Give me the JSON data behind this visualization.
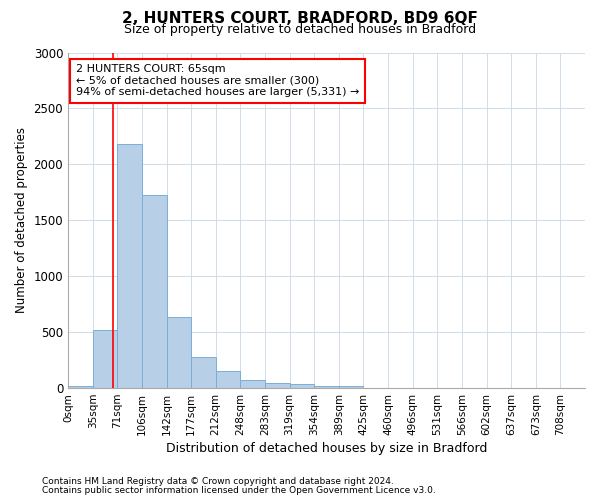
{
  "title": "2, HUNTERS COURT, BRADFORD, BD9 6QF",
  "subtitle": "Size of property relative to detached houses in Bradford",
  "xlabel": "Distribution of detached houses by size in Bradford",
  "ylabel": "Number of detached properties",
  "footnote1": "Contains HM Land Registry data © Crown copyright and database right 2024.",
  "footnote2": "Contains public sector information licensed under the Open Government Licence v3.0.",
  "bar_labels": [
    "0sqm",
    "35sqm",
    "71sqm",
    "106sqm",
    "142sqm",
    "177sqm",
    "212sqm",
    "248sqm",
    "283sqm",
    "319sqm",
    "354sqm",
    "389sqm",
    "425sqm",
    "460sqm",
    "496sqm",
    "531sqm",
    "566sqm",
    "602sqm",
    "637sqm",
    "673sqm",
    "708sqm"
  ],
  "bar_values": [
    20,
    520,
    2180,
    1730,
    635,
    280,
    155,
    70,
    45,
    35,
    20,
    15,
    5,
    5,
    5,
    2,
    2,
    1,
    1,
    1,
    0
  ],
  "bar_color": "#b8cfe8",
  "bar_edge_color": "#7aafd4",
  "ylim": [
    0,
    3000
  ],
  "yticks": [
    0,
    500,
    1000,
    1500,
    2000,
    2500,
    3000
  ],
  "property_sqm": 65,
  "bin_edges": [
    0,
    35,
    71,
    106,
    142,
    177,
    212,
    248,
    283,
    319,
    354,
    389,
    425,
    460,
    496,
    531,
    566,
    602,
    637,
    673,
    708
  ],
  "property_line_label": "2 HUNTERS COURT: 65sqm",
  "annotation_line1": "← 5% of detached houses are smaller (300)",
  "annotation_line2": "94% of semi-detached houses are larger (5,331) →",
  "bg_color": "#ffffff",
  "grid_color": "#d0dce8"
}
